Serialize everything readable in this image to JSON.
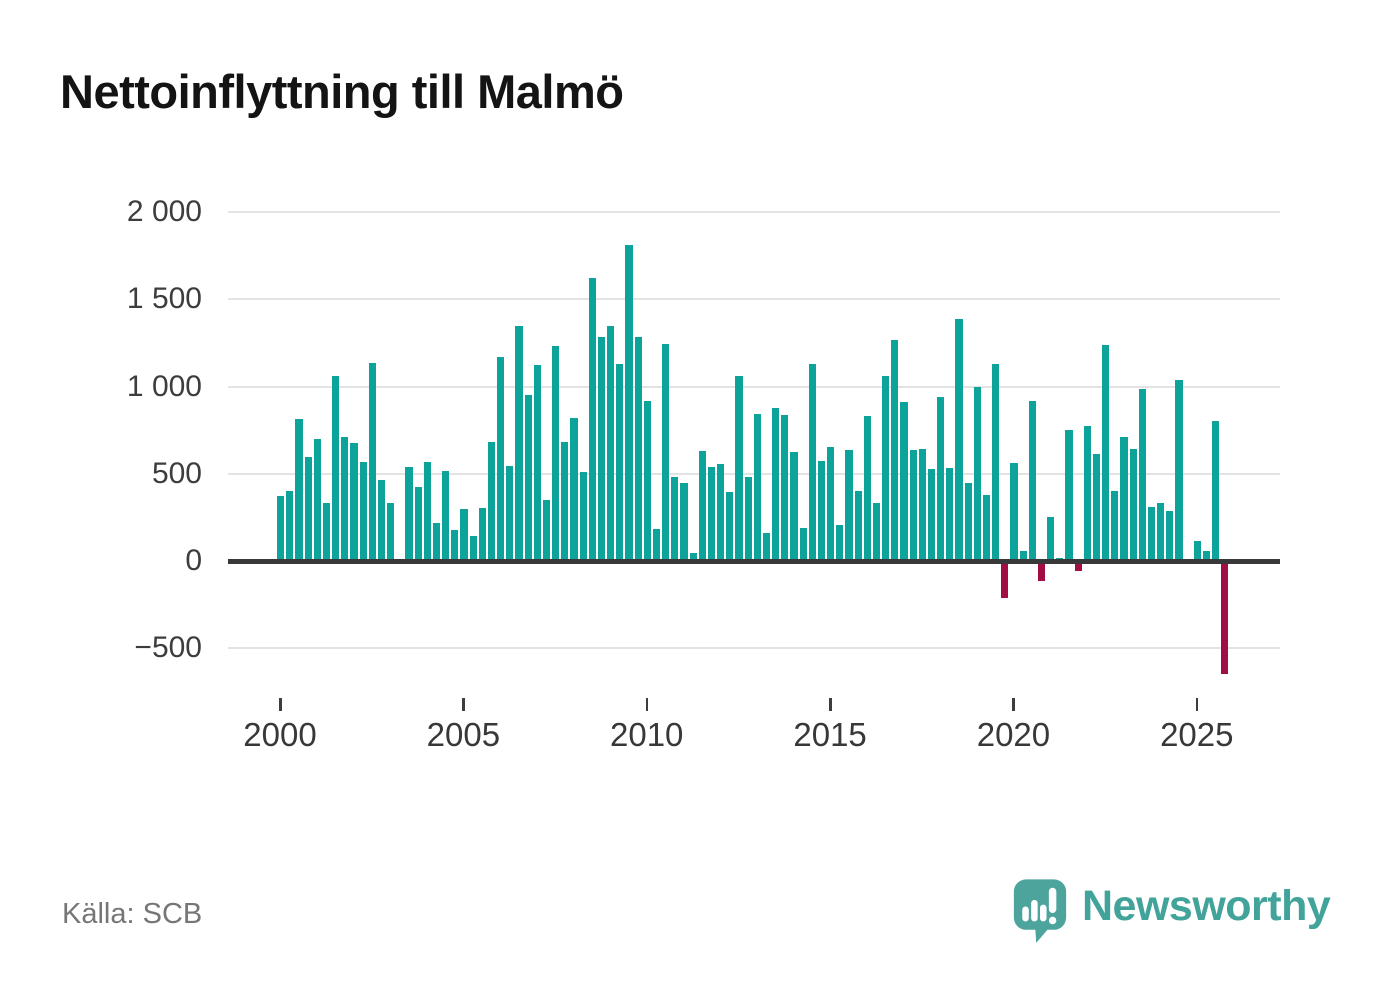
{
  "title": "Nettoinflyttning till Malmö",
  "source": "Källa: SCB",
  "logo": {
    "text": "Newsworthy",
    "icon": "speech-bubble-bar-chart-icon",
    "color": "#4da49d"
  },
  "colors": {
    "positive_bar": "#0ba39a",
    "negative_bar": "#a10d44",
    "axis_line": "#383838",
    "gridline": "#e3e3e3",
    "tick_text": "#3d3d3d"
  },
  "chart_data": {
    "type": "bar",
    "title": "Nettoinflyttning till Malmö",
    "x_unit": "quarter",
    "start_quarter": "2000Q1",
    "end_quarter": "2025Q4",
    "values": [
      370,
      400,
      815,
      595,
      700,
      330,
      1060,
      710,
      675,
      570,
      1135,
      465,
      330,
      0,
      540,
      425,
      570,
      220,
      515,
      180,
      300,
      145,
      305,
      685,
      1170,
      545,
      1345,
      950,
      1125,
      350,
      1235,
      680,
      820,
      510,
      1620,
      1285,
      1350,
      1130,
      1810,
      1285,
      920,
      185,
      1245,
      480,
      445,
      45,
      630,
      540,
      555,
      395,
      1060,
      480,
      845,
      160,
      880,
      840,
      625,
      190,
      1130,
      575,
      655,
      205,
      635,
      400,
      830,
      330,
      1060,
      1270,
      910,
      635,
      640,
      530,
      940,
      535,
      1385,
      445,
      1000,
      380,
      1130,
      -205,
      560,
      60,
      920,
      -110,
      255,
      15,
      750,
      -50,
      775,
      615,
      1240,
      400,
      710,
      645,
      985,
      310,
      335,
      285,
      1035,
      0,
      115,
      58,
      800,
      -640
    ],
    "ytick_values": [
      2000,
      1500,
      1000,
      500,
      0,
      -500
    ],
    "ytick_labels": [
      "2 000",
      "1 500",
      "1 000",
      "500",
      "0",
      "−500"
    ],
    "xtick_years": [
      2000,
      2005,
      2010,
      2015,
      2020,
      2025
    ],
    "xtick_labels": [
      "2000",
      "2005",
      "2010",
      "2015",
      "2020",
      "2025"
    ],
    "ylim": [
      -700,
      2100
    ],
    "grid": true,
    "legend": false
  }
}
